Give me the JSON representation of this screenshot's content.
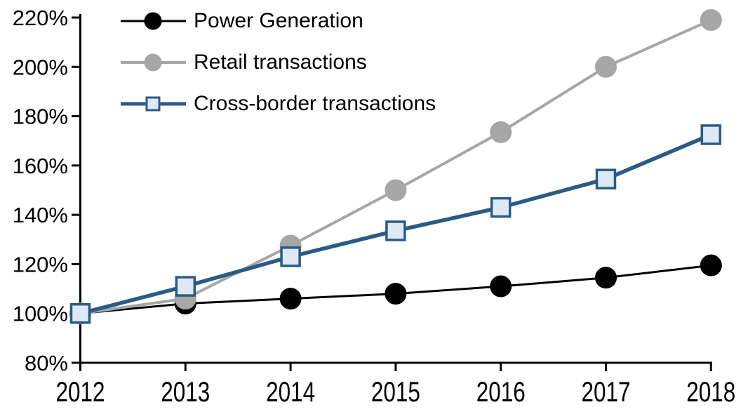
{
  "chart_data": {
    "type": "line",
    "title": "",
    "xlabel": "",
    "ylabel": "",
    "categories": [
      "2012",
      "2013",
      "2014",
      "2015",
      "2016",
      "2017",
      "2018"
    ],
    "y_ticks": [
      80,
      100,
      120,
      140,
      160,
      180,
      200,
      220
    ],
    "y_tick_labels": [
      "80%",
      "100%",
      "120%",
      "140%",
      "160%",
      "180%",
      "200%",
      "220%"
    ],
    "ylim": [
      80,
      220
    ],
    "grid": false,
    "legend_position": "top-left",
    "axis_color": "#000000",
    "background_color": "#ffffff",
    "series": [
      {
        "name": "Power Generation",
        "marker": "circle",
        "line_color": "#000000",
        "marker_fill": "#000000",
        "marker_stroke": "#000000",
        "values": [
          100,
          104,
          106,
          108,
          111,
          114.5,
          119.5
        ]
      },
      {
        "name": "Retail transactions",
        "marker": "circle",
        "line_color": "#A6A6A6",
        "marker_fill": "#A6A6A6",
        "marker_stroke": "#A6A6A6",
        "values": [
          100,
          106,
          127.5,
          150,
          173.5,
          200,
          219
        ]
      },
      {
        "name": "Cross-border transactions",
        "marker": "square",
        "line_color": "#2B5A87",
        "marker_fill": "#DEE9F6",
        "marker_stroke": "#2B5A87",
        "values": [
          100,
          111,
          123,
          133.5,
          143,
          154.5,
          172.5
        ]
      }
    ]
  }
}
